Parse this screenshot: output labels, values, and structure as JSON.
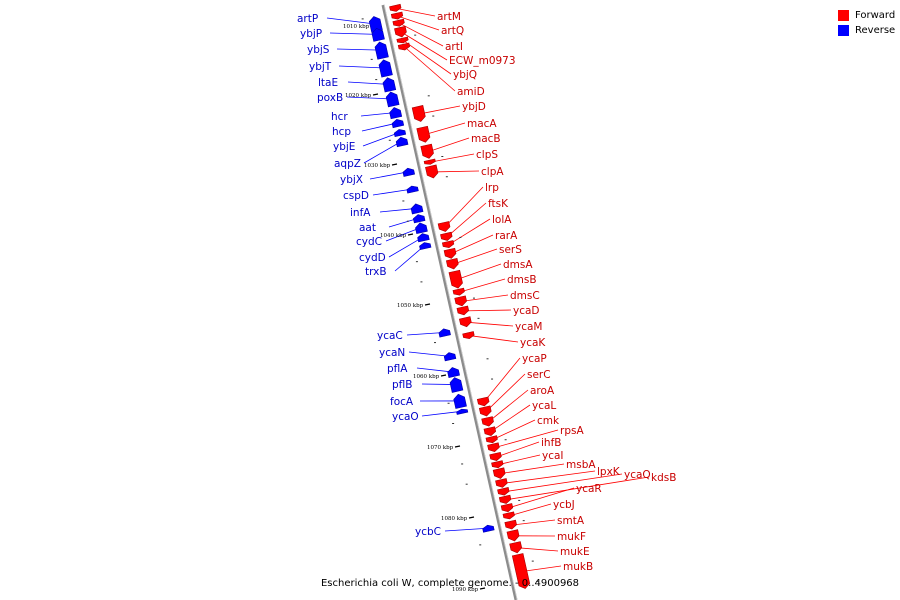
{
  "colors": {
    "forward": "#ff0000",
    "forward_dark": "#a80000",
    "reverse": "#0000ff",
    "reverse_dark": "#0000a8",
    "axis": "#8c8c8c"
  },
  "legend": [
    {
      "label": "Forward",
      "color": "#ff0000"
    },
    {
      "label": "Reverse",
      "color": "#0000ff"
    }
  ],
  "caption": "Escherichia coli W, complete genome. - 0..4900968",
  "kbp_ticks": [
    {
      "kbp": 1010,
      "label": "1010 kbp"
    },
    {
      "kbp": 1020,
      "label": "1020 kbp"
    },
    {
      "kbp": 1030,
      "label": "1030 kbp"
    },
    {
      "kbp": 1040,
      "label": "1040 kbp"
    },
    {
      "kbp": 1050,
      "label": "1050 kbp"
    },
    {
      "kbp": 1060,
      "label": "1060 kbp"
    },
    {
      "kbp": 1070,
      "label": "1070 kbp"
    },
    {
      "kbp": 1080,
      "label": "1080 kbp"
    },
    {
      "kbp": 1090,
      "label": "1090 kbp"
    }
  ],
  "reverse_genes": [
    "artP",
    "ybjP",
    "ybjS",
    "ybjT",
    "ltaE",
    "poxB",
    "hcr",
    "hcp",
    "ybjE",
    "aqpZ",
    "ybjX",
    "cspD",
    "infA",
    "aat",
    "cydC",
    "cydD",
    "trxB",
    "ycaC",
    "ycaN",
    "pflA",
    "pflB",
    "focA",
    "ycaO",
    "ycbC"
  ],
  "forward_genes": [
    "artM",
    "artQ",
    "artI",
    "ECW_m0973",
    "ybjQ",
    "amiD",
    "ybjD",
    "macA",
    "macB",
    "clpS",
    "clpA",
    "lrp",
    "ftsK",
    "lolA",
    "rarA",
    "serS",
    "dmsA",
    "dmsB",
    "dmsC",
    "ycaD",
    "ycaM",
    "ycaK",
    "ycaP",
    "serC",
    "aroA",
    "ycaL",
    "cmk",
    "rpsA",
    "ihfB",
    "ycaI",
    "msbA",
    "lpxK",
    "ycaQ",
    "kdsB",
    "ycaR",
    "ycbJ",
    "smtA",
    "mukF",
    "mukE",
    "mukB"
  ]
}
